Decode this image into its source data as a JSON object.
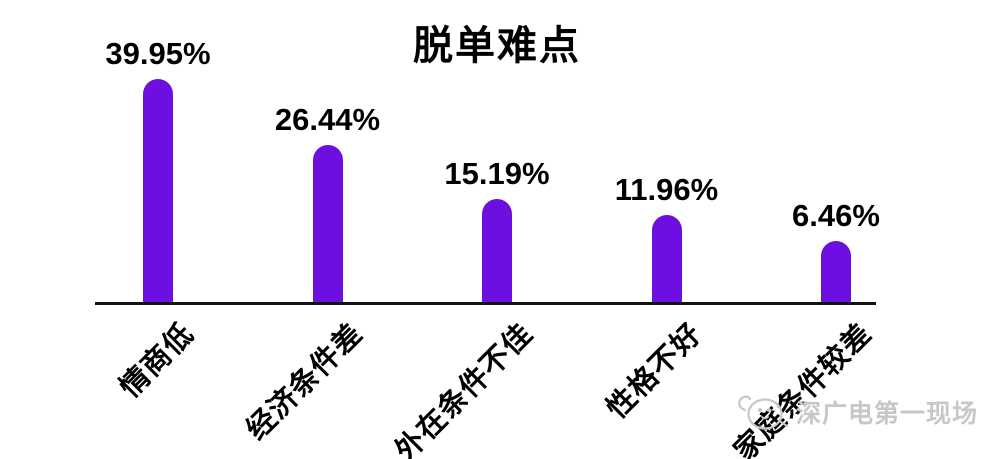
{
  "chart_data": {
    "type": "bar",
    "title": "脱单难点",
    "categories": [
      "情商低",
      "经济条件差",
      "外在条件不佳",
      "性格不好",
      "家庭条件较差"
    ],
    "values": [
      39.95,
      26.44,
      15.19,
      11.96,
      6.46
    ],
    "value_labels": [
      "39.95%",
      "26.44%",
      "15.19%",
      "11.96%",
      "6.46%"
    ],
    "unit": "%",
    "xlabel": "",
    "ylabel": "",
    "ylim": [
      0,
      45
    ],
    "grid": false,
    "legend": false,
    "x_tick_rotation_deg": 45,
    "bar_color": "#6C0FE0",
    "axis_color": "#111111",
    "text_color": "#000000"
  },
  "watermark": {
    "text": "深广电第一现场",
    "icon": "mascot-face-icon",
    "color": "#c7c7c7"
  }
}
